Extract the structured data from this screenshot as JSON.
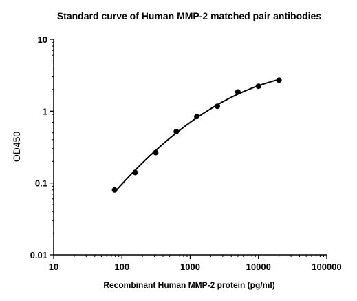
{
  "chart_data": {
    "type": "scatter",
    "title": "Standard curve of Human MMP-2 matched pair antibodies",
    "xlabel": "Recombinant Human MMP-2 protein (pg/ml)",
    "ylabel": "OD450",
    "x_scale": "log",
    "y_scale": "log",
    "xlim": [
      10,
      100000
    ],
    "ylim": [
      0.01,
      10
    ],
    "x_ticks": [
      10,
      100,
      1000,
      10000,
      100000
    ],
    "x_tick_labels": [
      "10",
      "100",
      "1000",
      "10000",
      "100000"
    ],
    "y_ticks": [
      0.01,
      0.1,
      1,
      10
    ],
    "y_tick_labels": [
      "0.01",
      "0.1",
      "1",
      "10"
    ],
    "grid": false,
    "series": [
      {
        "x": [
          78.125,
          156.25,
          312.5,
          625,
          1250,
          2500,
          5000,
          10000,
          20000
        ],
        "y": [
          0.08,
          0.14,
          0.265,
          0.52,
          0.84,
          1.17,
          1.85,
          2.22,
          2.7
        ],
        "marker": "circle",
        "fit_curve": true,
        "color": "#000000"
      }
    ]
  }
}
